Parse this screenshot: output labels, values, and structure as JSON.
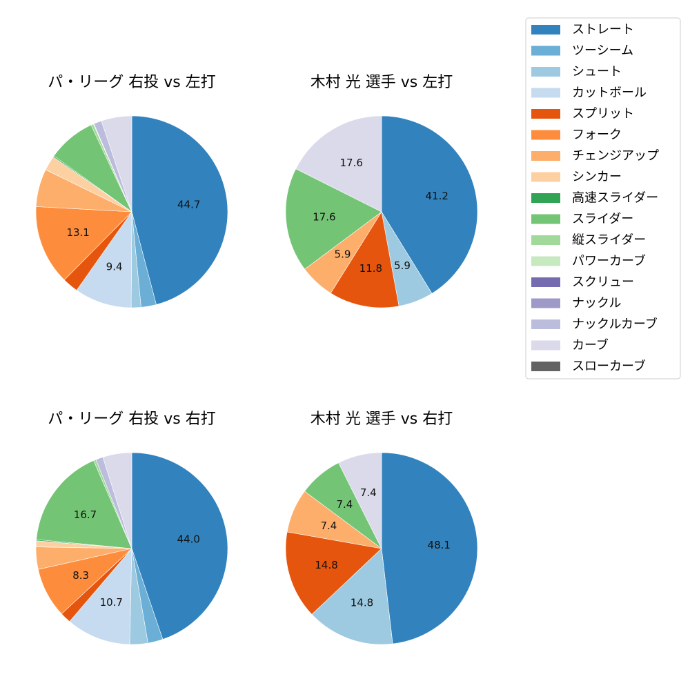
{
  "legend": {
    "categories": [
      {
        "name": "ストレート",
        "color": "#3182bd"
      },
      {
        "name": "ツーシーム",
        "color": "#6baed6"
      },
      {
        "name": "シュート",
        "color": "#9ecae1"
      },
      {
        "name": "カットボール",
        "color": "#c6dbef"
      },
      {
        "name": "スプリット",
        "color": "#e6550d"
      },
      {
        "name": "フォーク",
        "color": "#fd8d3c"
      },
      {
        "name": "チェンジアップ",
        "color": "#fdae6b"
      },
      {
        "name": "シンカー",
        "color": "#fdd0a2"
      },
      {
        "name": "高速スライダー",
        "color": "#31a354"
      },
      {
        "name": "スライダー",
        "color": "#74c476"
      },
      {
        "name": "縦スライダー",
        "color": "#a1d99b"
      },
      {
        "name": "パワーカーブ",
        "color": "#c7e9c0"
      },
      {
        "name": "スクリュー",
        "color": "#756bb1"
      },
      {
        "name": "ナックル",
        "color": "#9e9ac8"
      },
      {
        "name": "ナックルカーブ",
        "color": "#bcbddc"
      },
      {
        "name": "カーブ",
        "color": "#dadaeb"
      },
      {
        "name": "スローカーブ",
        "color": "#636363"
      }
    ]
  },
  "chart_data": [
    {
      "type": "pie",
      "title": "パ・リーグ 右投 vs 左打",
      "slices": [
        {
          "category": "ストレート",
          "value": 44.7,
          "label": "44.7"
        },
        {
          "category": "ツーシーム",
          "value": 2.5,
          "label": ""
        },
        {
          "category": "シュート",
          "value": 1.6,
          "label": ""
        },
        {
          "category": "カットボール",
          "value": 9.4,
          "label": "9.4"
        },
        {
          "category": "スプリット",
          "value": 2.6,
          "label": ""
        },
        {
          "category": "フォーク",
          "value": 13.1,
          "label": "13.1"
        },
        {
          "category": "チェンジアップ",
          "value": 6.2,
          "label": ""
        },
        {
          "category": "シンカー",
          "value": 2.4,
          "label": ""
        },
        {
          "category": "高速スライダー",
          "value": 0.2,
          "label": ""
        },
        {
          "category": "スライダー",
          "value": 7.9,
          "label": ""
        },
        {
          "category": "縦スライダー",
          "value": 0.4,
          "label": ""
        },
        {
          "category": "パワーカーブ",
          "value": 0.1,
          "label": ""
        },
        {
          "category": "ナックルカーブ",
          "value": 1.3,
          "label": ""
        },
        {
          "category": "カーブ",
          "value": 5.0,
          "label": ""
        }
      ]
    },
    {
      "type": "pie",
      "title": "木村 光 選手 vs 左打",
      "slices": [
        {
          "category": "ストレート",
          "value": 41.2,
          "label": "41.2"
        },
        {
          "category": "シュート",
          "value": 5.9,
          "label": "5.9"
        },
        {
          "category": "スプリット",
          "value": 11.8,
          "label": "11.8"
        },
        {
          "category": "チェンジアップ",
          "value": 5.9,
          "label": "5.9"
        },
        {
          "category": "スライダー",
          "value": 17.6,
          "label": "17.6"
        },
        {
          "category": "カーブ",
          "value": 17.6,
          "label": "17.6"
        }
      ]
    },
    {
      "type": "pie",
      "title": "パ・リーグ 右投 vs 右打",
      "slices": [
        {
          "category": "ストレート",
          "value": 44.0,
          "label": "44.0"
        },
        {
          "category": "ツーシーム",
          "value": 2.5,
          "label": ""
        },
        {
          "category": "シュート",
          "value": 3.0,
          "label": ""
        },
        {
          "category": "カットボール",
          "value": 10.7,
          "label": "10.7"
        },
        {
          "category": "スプリット",
          "value": 1.8,
          "label": ""
        },
        {
          "category": "フォーク",
          "value": 8.3,
          "label": "8.3"
        },
        {
          "category": "チェンジアップ",
          "value": 3.7,
          "label": ""
        },
        {
          "category": "シンカー",
          "value": 1.0,
          "label": ""
        },
        {
          "category": "高速スライダー",
          "value": 0.2,
          "label": ""
        },
        {
          "category": "スライダー",
          "value": 16.7,
          "label": "16.7"
        },
        {
          "category": "縦スライダー",
          "value": 0.4,
          "label": ""
        },
        {
          "category": "ナックルカーブ",
          "value": 1.2,
          "label": ""
        },
        {
          "category": "カーブ",
          "value": 4.8,
          "label": ""
        }
      ]
    },
    {
      "type": "pie",
      "title": "木村 光 選手 vs 右打",
      "slices": [
        {
          "category": "ストレート",
          "value": 48.1,
          "label": "48.1"
        },
        {
          "category": "シュート",
          "value": 14.8,
          "label": "14.8"
        },
        {
          "category": "スプリット",
          "value": 14.8,
          "label": "14.8"
        },
        {
          "category": "チェンジアップ",
          "value": 7.4,
          "label": "7.4"
        },
        {
          "category": "スライダー",
          "value": 7.4,
          "label": "7.4"
        },
        {
          "category": "カーブ",
          "value": 7.4,
          "label": "7.4"
        }
      ]
    }
  ]
}
